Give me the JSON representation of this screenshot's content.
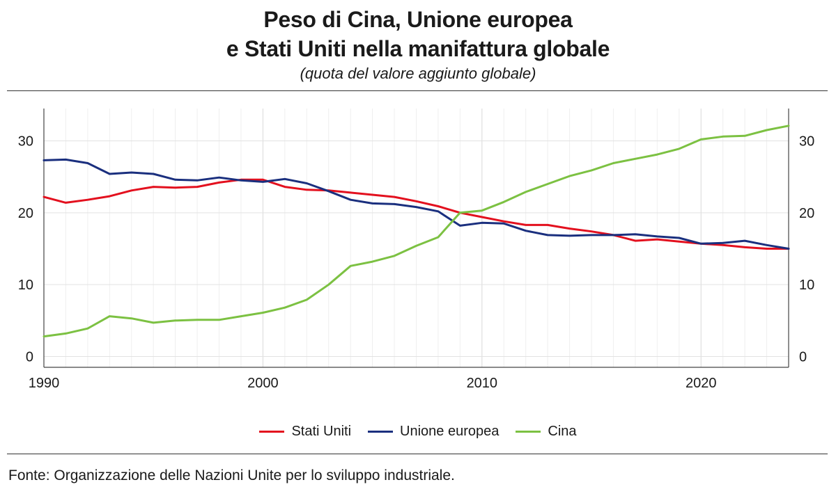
{
  "header": {
    "title_line1": "Peso di Cina, Unione europea",
    "title_line2": "e Stati Uniti nella manifattura globale",
    "subtitle": "(quota del valore aggiunto globale)"
  },
  "footer": {
    "source": "Fonte: Organizzazione delle Nazioni Unite per lo sviluppo industriale."
  },
  "chart_data": {
    "type": "line",
    "title": "Peso di Cina, Unione europea e Stati Uniti nella manifattura globale",
    "subtitle": "(quota del valore aggiunto globale)",
    "xlabel": "",
    "ylabel": "",
    "x": [
      1990,
      1991,
      1992,
      1993,
      1994,
      1995,
      1996,
      1997,
      1998,
      1999,
      2000,
      2001,
      2002,
      2003,
      2004,
      2005,
      2006,
      2007,
      2008,
      2009,
      2010,
      2011,
      2012,
      2013,
      2014,
      2015,
      2016,
      2017,
      2018,
      2019,
      2020,
      2021,
      2022,
      2023,
      2024
    ],
    "x_ticks": [
      "1990",
      "2000",
      "2010",
      "2020"
    ],
    "x_tick_values": [
      1990,
      2000,
      2010,
      2020
    ],
    "xlim": [
      1990,
      2024
    ],
    "y_ticks": [
      "0",
      "10",
      "20",
      "30"
    ],
    "y_tick_values": [
      0,
      10,
      20,
      30
    ],
    "ylim": [
      -1.5,
      34.5
    ],
    "y_axis_both_sides": true,
    "grid": true,
    "legend_position": "bottom",
    "series": [
      {
        "name": "Stati Uniti",
        "color": "#e3101e",
        "values": [
          22.2,
          21.4,
          21.8,
          22.3,
          23.1,
          23.6,
          23.5,
          23.6,
          24.2,
          24.6,
          24.6,
          23.6,
          23.2,
          23.1,
          22.8,
          22.5,
          22.2,
          21.6,
          20.9,
          20.0,
          19.4,
          18.8,
          18.3,
          18.3,
          17.8,
          17.4,
          16.9,
          16.1,
          16.3,
          16.0,
          15.7,
          15.5,
          15.2,
          15.0,
          15.0
        ]
      },
      {
        "name": "Unione europea",
        "color": "#1a2f7e",
        "values": [
          27.3,
          27.4,
          26.9,
          25.4,
          25.6,
          25.4,
          24.6,
          24.5,
          24.9,
          24.5,
          24.3,
          24.7,
          24.1,
          23.0,
          21.8,
          21.3,
          21.2,
          20.8,
          20.2,
          18.2,
          18.6,
          18.5,
          17.5,
          16.9,
          16.8,
          16.9,
          16.9,
          17.0,
          16.7,
          16.5,
          15.7,
          15.8,
          16.1,
          15.5,
          15.0
        ]
      },
      {
        "name": "Cina",
        "color": "#7cc142",
        "values": [
          2.8,
          3.2,
          3.9,
          5.6,
          5.3,
          4.7,
          5.0,
          5.1,
          5.1,
          5.6,
          6.1,
          6.8,
          7.9,
          10.0,
          12.6,
          13.2,
          14.0,
          15.4,
          16.6,
          20.0,
          20.3,
          21.5,
          22.9,
          24.0,
          25.1,
          25.9,
          26.9,
          27.5,
          28.1,
          28.9,
          30.2,
          30.6,
          30.7,
          31.5,
          32.1
        ]
      }
    ]
  }
}
